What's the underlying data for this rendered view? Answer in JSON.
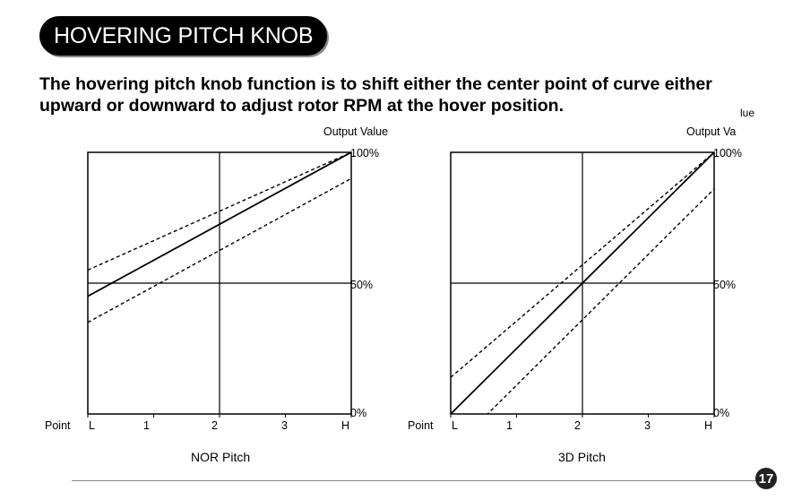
{
  "header": {
    "title": "HOVERING PITCH KNOB"
  },
  "intro": {
    "text": "The hovering pitch knob function is to shift either the center point of curve either upward or downward to adjust rotor RPM at the hover position."
  },
  "stray_text": "lue",
  "page_number": "17",
  "chart_data": [
    {
      "type": "line",
      "caption": "NOR Pitch",
      "ylabel": "Output Value",
      "xlabel_prefix": "Point",
      "x_ticks": [
        "L",
        "1",
        "2",
        "3",
        "H"
      ],
      "y_ticks": [
        "0%",
        "50%",
        "100%"
      ],
      "x": [
        0,
        4
      ],
      "ylim": [
        0,
        100
      ],
      "series": [
        {
          "style": "solid",
          "values": [
            45,
            100
          ]
        },
        {
          "style": "dashed",
          "values": [
            55,
            100
          ]
        },
        {
          "style": "dashed",
          "values": [
            35,
            90
          ]
        }
      ]
    },
    {
      "type": "line",
      "caption": "3D Pitch",
      "ylabel": "Output Va",
      "xlabel_prefix": "Point",
      "x_ticks": [
        "L",
        "1",
        "2",
        "3",
        "H"
      ],
      "y_ticks": [
        "0%",
        "50%",
        "100%"
      ],
      "x": [
        0,
        4
      ],
      "ylim": [
        0,
        100
      ],
      "series": [
        {
          "style": "solid",
          "values": [
            0,
            100
          ]
        },
        {
          "style": "dashed",
          "values": [
            14,
            100
          ]
        },
        {
          "style": "dashed",
          "values": [
            -14,
            86
          ]
        }
      ]
    }
  ]
}
